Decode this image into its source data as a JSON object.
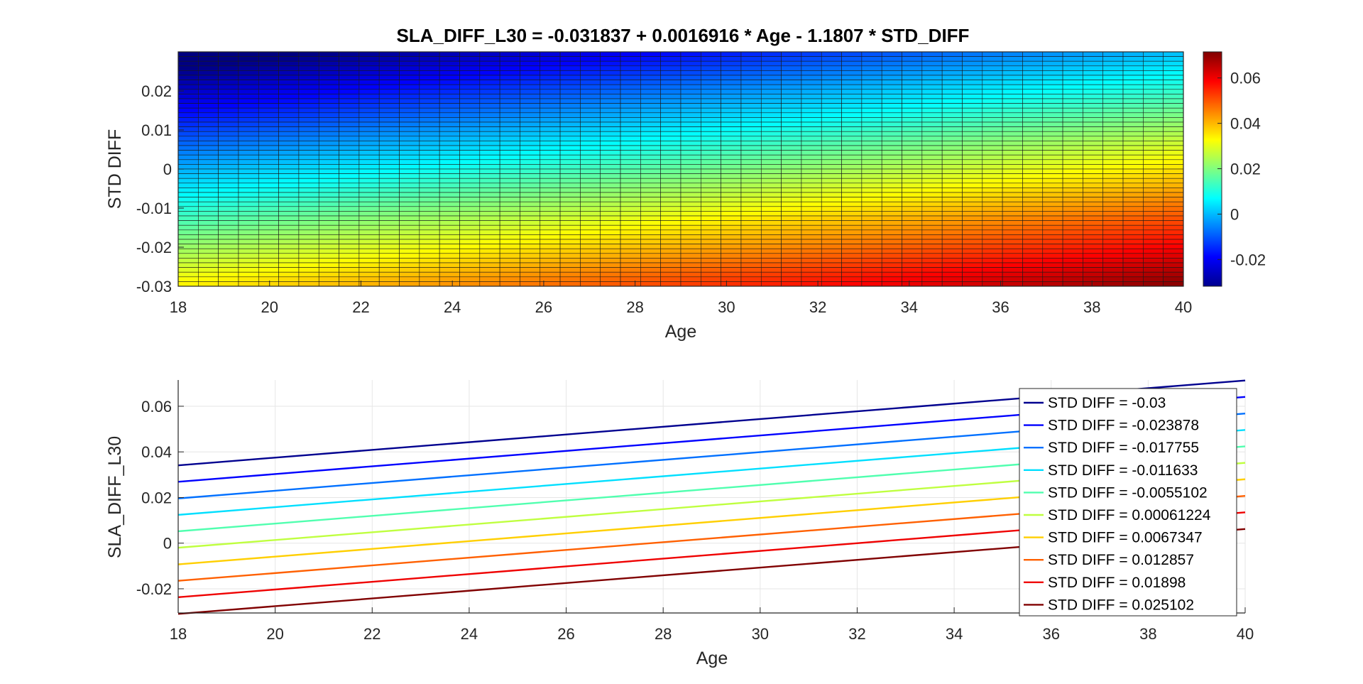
{
  "chart_data": [
    {
      "type": "heatmap",
      "title": "SLA_DIFF_L30  =  -0.031837  +  0.0016916 * Age - 1.1807 * STD_DIFF",
      "xlabel": "Age",
      "ylabel": "STD DIFF",
      "xlim": [
        18,
        40
      ],
      "ylim": [
        -0.03,
        0.03
      ],
      "x_ticks": [
        "18",
        "20",
        "22",
        "24",
        "26",
        "28",
        "30",
        "32",
        "34",
        "36",
        "38",
        "40"
      ],
      "y_ticks": [
        "-0.03",
        "-0.02",
        "-0.01",
        "0",
        "0.01",
        "0.02"
      ],
      "grid_cols": 50,
      "grid_rows": 50,
      "equation": {
        "intercept": -0.031837,
        "age_coef": 0.0016916,
        "std_coef": -1.1807
      },
      "colorbar": {
        "colormap": "jet",
        "range": [
          -0.0318,
          0.0715
        ],
        "ticks": [
          "0.06",
          "0.04",
          "0.02",
          "0",
          "-0.02"
        ]
      },
      "grid": false
    },
    {
      "type": "line",
      "xlabel": "Age",
      "ylabel": "SLA_DIFF_L30",
      "xlim": [
        18,
        40
      ],
      "ylim": [
        -0.0306,
        0.0715
      ],
      "x_ticks": [
        "18",
        "20",
        "22",
        "24",
        "26",
        "28",
        "30",
        "32",
        "34",
        "36",
        "38",
        "40"
      ],
      "y_ticks": [
        "0.06",
        "0.04",
        "0.02",
        "0",
        "-0.02"
      ],
      "grid": true,
      "legend_position": "top-right",
      "x": [
        18,
        40
      ],
      "series": [
        {
          "name": "STD DIFF = -0.03",
          "values": [
            0.0341,
            0.0713
          ],
          "color": "#00008F"
        },
        {
          "name": "STD DIFF = -0.023878",
          "values": [
            0.0269,
            0.0641
          ],
          "color": "#0000FF"
        },
        {
          "name": "STD DIFF = -0.017755",
          "values": [
            0.0196,
            0.0568
          ],
          "color": "#0070FF"
        },
        {
          "name": "STD DIFF = -0.011633",
          "values": [
            0.0124,
            0.0496
          ],
          "color": "#00DFFF"
        },
        {
          "name": "STD DIFF = -0.0055102",
          "values": [
            0.0052,
            0.0424
          ],
          "color": "#50FFAF"
        },
        {
          "name": "STD DIFF = 0.00061224",
          "values": [
            -0.002,
            0.0352
          ],
          "color": "#BFFF40"
        },
        {
          "name": "STD DIFF = 0.0067347",
          "values": [
            -0.0093,
            0.028
          ],
          "color": "#FFCF00"
        },
        {
          "name": "STD DIFF = 0.012857",
          "values": [
            -0.0165,
            0.0207
          ],
          "color": "#FF6000"
        },
        {
          "name": "STD DIFF = 0.01898",
          "values": [
            -0.0237,
            0.0135
          ],
          "color": "#EF0000"
        },
        {
          "name": "STD DIFF = 0.025102",
          "values": [
            -0.031,
            0.0062
          ],
          "color": "#800000"
        }
      ]
    }
  ]
}
